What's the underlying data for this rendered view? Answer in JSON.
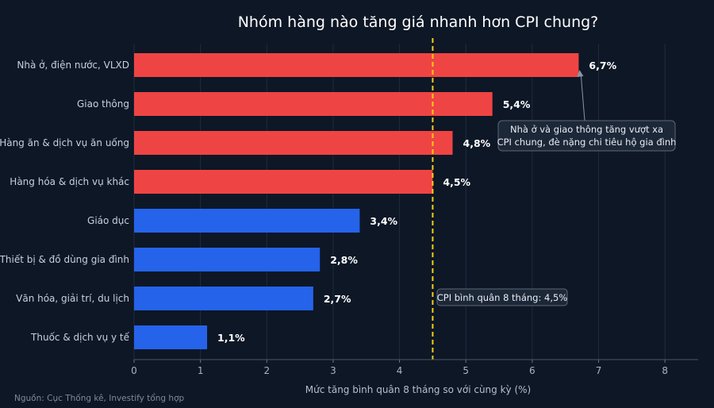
{
  "chart_data": {
    "type": "bar",
    "orientation": "horizontal",
    "title": "Nhóm hàng nào tăng giá nhanh hơn CPI chung?",
    "xlabel": "Mức tăng bình quân 8 tháng so với cùng kỳ (%)",
    "ylabel": "",
    "xlim": [
      0,
      8.5
    ],
    "xticks": [
      0,
      1,
      2,
      3,
      4,
      5,
      6,
      7,
      8
    ],
    "grid": "vertical",
    "categories": [
      "Nhà ở, điện nước, VLXD",
      "Giao thông",
      "Hàng ăn & dịch vụ ăn uống",
      "Hàng hóa & dịch vụ khác",
      "Giáo dục",
      "Thiết bị & đồ dùng gia đình",
      "Văn hóa, giải trí, du lịch",
      "Thuốc & dịch vụ y tế"
    ],
    "values": [
      6.7,
      5.4,
      4.8,
      4.5,
      3.4,
      2.8,
      2.7,
      1.1
    ],
    "value_labels": [
      "6,7%",
      "5,4%",
      "4,8%",
      "4,5%",
      "3,4%",
      "2,8%",
      "2,7%",
      "1,1%"
    ],
    "colors": {
      "above": "#ef4444",
      "below": "#2563eb",
      "reference": "#facc15",
      "background": "#0d1726",
      "grid": "#1f2b3d"
    },
    "reference_line": {
      "value": 4.5,
      "label": "CPI bình quân 8 tháng: 4,5%"
    },
    "annotation": {
      "lines": [
        "Nhà ở và giao thông tăng vượt xa",
        "CPI chung, đè nặng chi tiêu hộ gia đình"
      ],
      "target_category": "Nhà ở, điện nước, VLXD"
    },
    "source": "Nguồn: Cục Thống kê, Investify tổng hợp"
  }
}
